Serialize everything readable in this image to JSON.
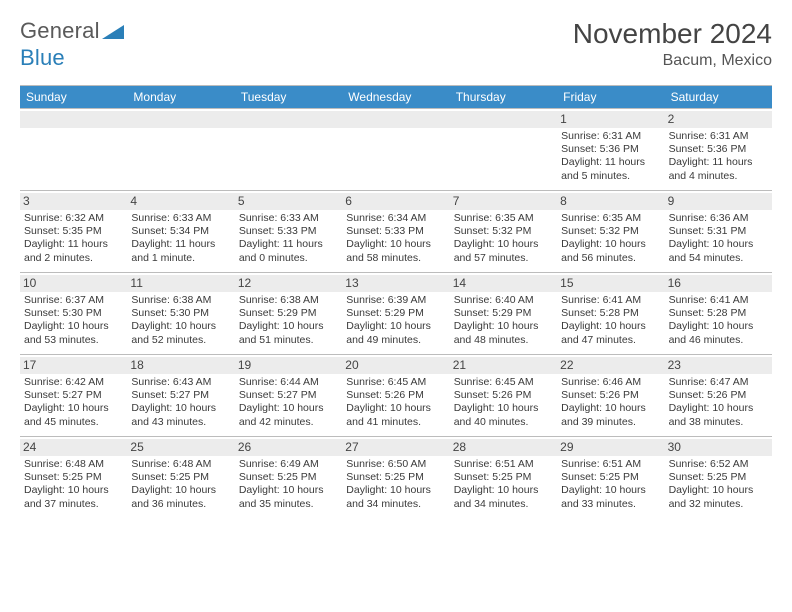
{
  "logo": {
    "word1": "General",
    "word2": "Blue"
  },
  "title": "November 2024",
  "location": "Bacum, Mexico",
  "colors": {
    "header_bg": "#3a8cc8",
    "header_text": "#ffffff",
    "daynum_bg": "#ececec",
    "border": "#bcbcbc",
    "text": "#3a3a3a",
    "logo_gray": "#5a5a5a",
    "logo_blue": "#2a7fb8"
  },
  "day_headers": [
    "Sunday",
    "Monday",
    "Tuesday",
    "Wednesday",
    "Thursday",
    "Friday",
    "Saturday"
  ],
  "leading_blanks": 5,
  "days": [
    {
      "n": "1",
      "sunrise": "Sunrise: 6:31 AM",
      "sunset": "Sunset: 5:36 PM",
      "daylight": "Daylight: 11 hours and 5 minutes."
    },
    {
      "n": "2",
      "sunrise": "Sunrise: 6:31 AM",
      "sunset": "Sunset: 5:36 PM",
      "daylight": "Daylight: 11 hours and 4 minutes."
    },
    {
      "n": "3",
      "sunrise": "Sunrise: 6:32 AM",
      "sunset": "Sunset: 5:35 PM",
      "daylight": "Daylight: 11 hours and 2 minutes."
    },
    {
      "n": "4",
      "sunrise": "Sunrise: 6:33 AM",
      "sunset": "Sunset: 5:34 PM",
      "daylight": "Daylight: 11 hours and 1 minute."
    },
    {
      "n": "5",
      "sunrise": "Sunrise: 6:33 AM",
      "sunset": "Sunset: 5:33 PM",
      "daylight": "Daylight: 11 hours and 0 minutes."
    },
    {
      "n": "6",
      "sunrise": "Sunrise: 6:34 AM",
      "sunset": "Sunset: 5:33 PM",
      "daylight": "Daylight: 10 hours and 58 minutes."
    },
    {
      "n": "7",
      "sunrise": "Sunrise: 6:35 AM",
      "sunset": "Sunset: 5:32 PM",
      "daylight": "Daylight: 10 hours and 57 minutes."
    },
    {
      "n": "8",
      "sunrise": "Sunrise: 6:35 AM",
      "sunset": "Sunset: 5:32 PM",
      "daylight": "Daylight: 10 hours and 56 minutes."
    },
    {
      "n": "9",
      "sunrise": "Sunrise: 6:36 AM",
      "sunset": "Sunset: 5:31 PM",
      "daylight": "Daylight: 10 hours and 54 minutes."
    },
    {
      "n": "10",
      "sunrise": "Sunrise: 6:37 AM",
      "sunset": "Sunset: 5:30 PM",
      "daylight": "Daylight: 10 hours and 53 minutes."
    },
    {
      "n": "11",
      "sunrise": "Sunrise: 6:38 AM",
      "sunset": "Sunset: 5:30 PM",
      "daylight": "Daylight: 10 hours and 52 minutes."
    },
    {
      "n": "12",
      "sunrise": "Sunrise: 6:38 AM",
      "sunset": "Sunset: 5:29 PM",
      "daylight": "Daylight: 10 hours and 51 minutes."
    },
    {
      "n": "13",
      "sunrise": "Sunrise: 6:39 AM",
      "sunset": "Sunset: 5:29 PM",
      "daylight": "Daylight: 10 hours and 49 minutes."
    },
    {
      "n": "14",
      "sunrise": "Sunrise: 6:40 AM",
      "sunset": "Sunset: 5:29 PM",
      "daylight": "Daylight: 10 hours and 48 minutes."
    },
    {
      "n": "15",
      "sunrise": "Sunrise: 6:41 AM",
      "sunset": "Sunset: 5:28 PM",
      "daylight": "Daylight: 10 hours and 47 minutes."
    },
    {
      "n": "16",
      "sunrise": "Sunrise: 6:41 AM",
      "sunset": "Sunset: 5:28 PM",
      "daylight": "Daylight: 10 hours and 46 minutes."
    },
    {
      "n": "17",
      "sunrise": "Sunrise: 6:42 AM",
      "sunset": "Sunset: 5:27 PM",
      "daylight": "Daylight: 10 hours and 45 minutes."
    },
    {
      "n": "18",
      "sunrise": "Sunrise: 6:43 AM",
      "sunset": "Sunset: 5:27 PM",
      "daylight": "Daylight: 10 hours and 43 minutes."
    },
    {
      "n": "19",
      "sunrise": "Sunrise: 6:44 AM",
      "sunset": "Sunset: 5:27 PM",
      "daylight": "Daylight: 10 hours and 42 minutes."
    },
    {
      "n": "20",
      "sunrise": "Sunrise: 6:45 AM",
      "sunset": "Sunset: 5:26 PM",
      "daylight": "Daylight: 10 hours and 41 minutes."
    },
    {
      "n": "21",
      "sunrise": "Sunrise: 6:45 AM",
      "sunset": "Sunset: 5:26 PM",
      "daylight": "Daylight: 10 hours and 40 minutes."
    },
    {
      "n": "22",
      "sunrise": "Sunrise: 6:46 AM",
      "sunset": "Sunset: 5:26 PM",
      "daylight": "Daylight: 10 hours and 39 minutes."
    },
    {
      "n": "23",
      "sunrise": "Sunrise: 6:47 AM",
      "sunset": "Sunset: 5:26 PM",
      "daylight": "Daylight: 10 hours and 38 minutes."
    },
    {
      "n": "24",
      "sunrise": "Sunrise: 6:48 AM",
      "sunset": "Sunset: 5:25 PM",
      "daylight": "Daylight: 10 hours and 37 minutes."
    },
    {
      "n": "25",
      "sunrise": "Sunrise: 6:48 AM",
      "sunset": "Sunset: 5:25 PM",
      "daylight": "Daylight: 10 hours and 36 minutes."
    },
    {
      "n": "26",
      "sunrise": "Sunrise: 6:49 AM",
      "sunset": "Sunset: 5:25 PM",
      "daylight": "Daylight: 10 hours and 35 minutes."
    },
    {
      "n": "27",
      "sunrise": "Sunrise: 6:50 AM",
      "sunset": "Sunset: 5:25 PM",
      "daylight": "Daylight: 10 hours and 34 minutes."
    },
    {
      "n": "28",
      "sunrise": "Sunrise: 6:51 AM",
      "sunset": "Sunset: 5:25 PM",
      "daylight": "Daylight: 10 hours and 34 minutes."
    },
    {
      "n": "29",
      "sunrise": "Sunrise: 6:51 AM",
      "sunset": "Sunset: 5:25 PM",
      "daylight": "Daylight: 10 hours and 33 minutes."
    },
    {
      "n": "30",
      "sunrise": "Sunrise: 6:52 AM",
      "sunset": "Sunset: 5:25 PM",
      "daylight": "Daylight: 10 hours and 32 minutes."
    }
  ]
}
